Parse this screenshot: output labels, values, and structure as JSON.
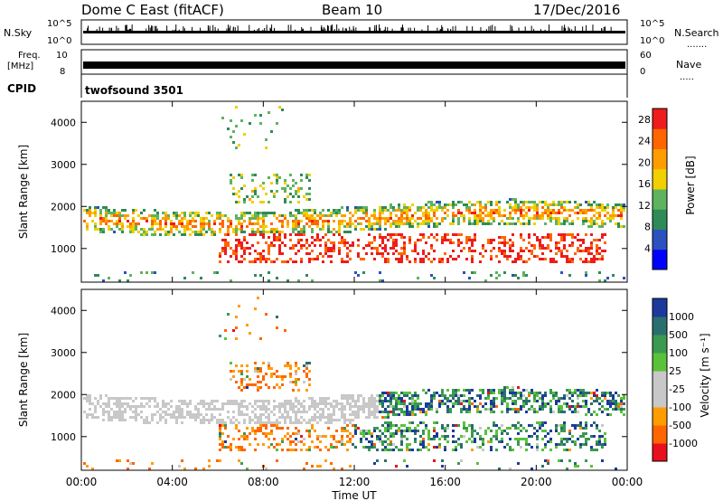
{
  "header": {
    "station": "Dome C East (fitACF)",
    "beam": "Beam 10",
    "date": "17/Dec/2016"
  },
  "side_labels": {
    "nsky": "N.Sky",
    "nsearch": "N.Search",
    "freq_line1": "Freq.",
    "freq_line2": "[MHz]",
    "nave": "Nave",
    "cpid": "CPID",
    "cpid_value": "twofsound 3501"
  },
  "strip_ticks": {
    "noise_left": [
      "10^5",
      "10^0"
    ],
    "noise_right": [
      "10^5",
      "10^0"
    ],
    "freq_left": [
      "10",
      "8"
    ],
    "freq_right": [
      "60",
      "0"
    ]
  },
  "colors": {
    "power_scale": [
      "#0000ff",
      "#2a52be",
      "#2e8b57",
      "#5fb35f",
      "#f0d000",
      "#ff9d00",
      "#ff6600",
      "#ee1c1c"
    ],
    "velocity_scale": [
      "#e8101c",
      "#ff6600",
      "#ff9d00",
      "#c8c8c8",
      "#c8c8c8",
      "#59c23a",
      "#3a9a50",
      "#2a6e6e",
      "#1c3a9c"
    ],
    "ground_scatter": "#c8c8c8"
  },
  "chart_data": [
    {
      "type": "heatmap",
      "panel": "power",
      "xlabel": "Time UT",
      "ylabel": "Slant Range [km]",
      "x_ticks": [
        "00:00",
        "04:00",
        "08:00",
        "12:00",
        "16:00",
        "20:00",
        "00:00"
      ],
      "y_ticks": [
        1000,
        2000,
        3000,
        4000
      ],
      "ylim": [
        200,
        4500
      ],
      "xlim_hours": [
        0,
        24
      ],
      "colorbar": {
        "label": "Power [dB]",
        "ticks": [
          4,
          8,
          12,
          16,
          20,
          24,
          28
        ],
        "range": [
          0,
          30
        ]
      }
    },
    {
      "type": "heatmap",
      "panel": "velocity",
      "xlabel": "Time UT",
      "ylabel": "Slant Range [km]",
      "x_ticks": [
        "00:00",
        "04:00",
        "08:00",
        "12:00",
        "16:00",
        "20:00",
        "00:00"
      ],
      "y_ticks": [
        1000,
        2000,
        3000,
        4000
      ],
      "ylim": [
        200,
        4500
      ],
      "xlim_hours": [
        0,
        24
      ],
      "colorbar": {
        "label": "Velocity [m s⁻¹]",
        "ticks": [
          "1000",
          "500",
          "100",
          "25",
          "-25",
          "-100",
          "-500",
          "-1000"
        ]
      }
    }
  ]
}
